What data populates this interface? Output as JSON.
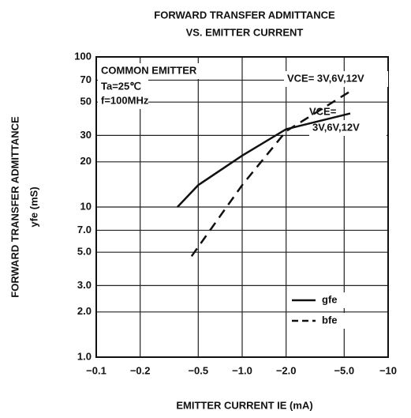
{
  "chart_data": {
    "type": "line",
    "title": "FORWARD TRANSFER ADMITTANCE",
    "subtitle": "VS. EMITTER CURRENT",
    "x_label": "EMITTER CURRENT   IE (mA)",
    "y_label": "FORWARD TRANSFER ADMITTANCE",
    "y_label_2": "yfe (mS)",
    "xlog": true,
    "ylog": true,
    "grid": true,
    "xlim": [
      -0.1,
      -10
    ],
    "ylim": [
      1,
      100
    ],
    "xticks": [
      {
        "value": -0.1,
        "label": "−0.1"
      },
      {
        "value": -0.2,
        "label": "−0.2"
      },
      {
        "value": -0.5,
        "label": "−0.5"
      },
      {
        "value": -1,
        "label": "−1.0"
      },
      {
        "value": -2,
        "label": "−2.0"
      },
      {
        "value": -5,
        "label": "−5.0"
      },
      {
        "value": -10,
        "label": "−10"
      }
    ],
    "yticks": [
      {
        "value": 1,
        "label": "1.0"
      },
      {
        "value": 2,
        "label": "2.0"
      },
      {
        "value": 3,
        "label": "3.0"
      },
      {
        "value": 5,
        "label": "5.0"
      },
      {
        "value": 7,
        "label": "7.0"
      },
      10,
      20,
      30,
      50,
      70,
      100
    ],
    "annotations": [
      "COMMON EMITTER",
      "Ta=25℃",
      "f=100MHz",
      "VCE= 3V,6V,12V",
      "VCE=",
      "3V,6V,12V"
    ],
    "series": [
      {
        "name": "gfe",
        "color": "#111111",
        "dashed": false,
        "x": [
          -0.36,
          -0.5,
          -1,
          -2,
          -5.5
        ],
        "values": [
          10,
          14,
          22,
          33,
          42
        ]
      },
      {
        "name": "bfe",
        "color": "#111111",
        "dashed": true,
        "x": [
          -0.45,
          -1,
          -2,
          -5.5
        ],
        "values": [
          4.7,
          14,
          32,
          59
        ]
      }
    ]
  }
}
